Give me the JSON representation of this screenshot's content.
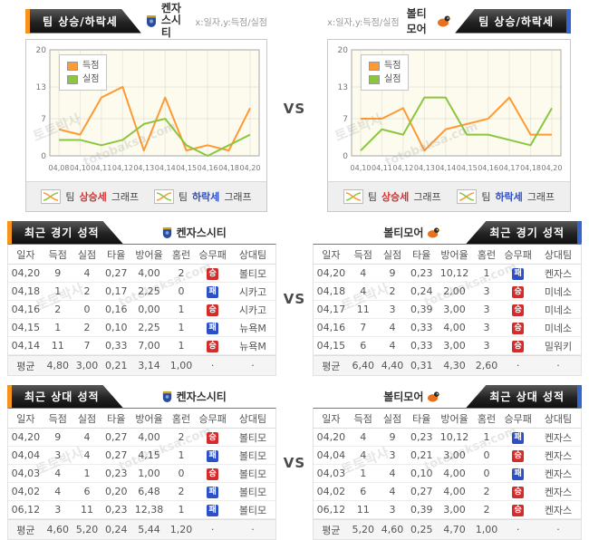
{
  "vs": "VS",
  "axis_note": "x:일자,y:득점/실점",
  "trend_tab_label": "팀 상승/하락세",
  "watermark": {
    "kr": "토토박사",
    "en": "totobaksa.com"
  },
  "legend": {
    "score": "득점",
    "concede": "실점"
  },
  "chart_footer": {
    "up": {
      "pre": "팀",
      "key": "상승세",
      "post": "그래프"
    },
    "down": {
      "pre": "팀",
      "key": "하락세",
      "post": "그래프"
    }
  },
  "teams": {
    "left": {
      "name": "켄자스시티"
    },
    "right": {
      "name": "볼티모어"
    }
  },
  "colors": {
    "score_line": "#FF9933",
    "concede_line": "#8CC63F",
    "accent_left": "#F7941D",
    "accent_right": "#3565CE",
    "win_badge": "#D42B2B",
    "loss_badge": "#2D4FC8"
  },
  "cell_names": [
    "date",
    "runs-scored",
    "runs-allowed",
    "batting-avg",
    "era",
    "home-runs",
    "result",
    "opponent"
  ],
  "chart_data": [
    {
      "type": "line",
      "team": "켄자스시티",
      "x": [
        "04,08",
        "04,10",
        "04,11",
        "04,12",
        "04,13",
        "04,14",
        "04,15",
        "04,16",
        "04,18",
        "04,20"
      ],
      "series": [
        {
          "name": "득점",
          "color": "#FF9933",
          "values": [
            5,
            4,
            11,
            13,
            1,
            11,
            1,
            2,
            1,
            9
          ]
        },
        {
          "name": "실점",
          "color": "#8CC63F",
          "values": [
            3,
            3,
            2,
            3,
            6,
            7,
            2,
            0,
            2,
            4
          ]
        }
      ],
      "ylim": [
        0,
        20
      ],
      "yticks": [
        0,
        7,
        13,
        20
      ],
      "legend_position": "top-left",
      "grid": true
    },
    {
      "type": "line",
      "team": "볼티모어",
      "x": [
        "04,10",
        "04,11",
        "04,12",
        "04,13",
        "04,14",
        "04,15",
        "04,16",
        "04,17",
        "04,18",
        "04,20"
      ],
      "series": [
        {
          "name": "득점",
          "color": "#FF9933",
          "values": [
            7,
            7,
            9,
            1,
            5,
            6,
            7,
            11,
            4,
            4
          ]
        },
        {
          "name": "실점",
          "color": "#8CC63F",
          "values": [
            1,
            5,
            4,
            11,
            11,
            4,
            4,
            3,
            2,
            9
          ]
        }
      ],
      "ylim": [
        0,
        20
      ],
      "yticks": [
        0,
        7,
        13,
        20
      ],
      "legend_position": "top-left",
      "grid": true
    }
  ],
  "recent_games": {
    "title": "최근 경기 성적",
    "columns": [
      "일자",
      "득점",
      "실점",
      "타율",
      "방어율",
      "홈런",
      "승무패",
      "상대팀"
    ],
    "left": {
      "rows": [
        [
          "04,20",
          "9",
          "4",
          "0,27",
          "4,00",
          "2",
          "승",
          "볼티모"
        ],
        [
          "04,18",
          "1",
          "2",
          "0,17",
          "2,25",
          "0",
          "패",
          "시카고"
        ],
        [
          "04,16",
          "2",
          "0",
          "0,16",
          "0,00",
          "1",
          "승",
          "시카고"
        ],
        [
          "04,15",
          "1",
          "2",
          "0,10",
          "2,25",
          "1",
          "패",
          "뉴욕M"
        ],
        [
          "04,14",
          "11",
          "7",
          "0,33",
          "7,00",
          "1",
          "승",
          "뉴욕M"
        ]
      ],
      "avg": [
        "평균",
        "4,80",
        "3,00",
        "0,21",
        "3,14",
        "1,00",
        "·",
        "·"
      ]
    },
    "right": {
      "rows": [
        [
          "04,20",
          "4",
          "9",
          "0,23",
          "10,12",
          "1",
          "패",
          "켄자스"
        ],
        [
          "04,18",
          "4",
          "2",
          "0,24",
          "2,00",
          "3",
          "승",
          "미네소"
        ],
        [
          "04,17",
          "11",
          "3",
          "0,39",
          "3,00",
          "3",
          "승",
          "미네소"
        ],
        [
          "04,16",
          "7",
          "4",
          "0,33",
          "4,00",
          "3",
          "승",
          "미네소"
        ],
        [
          "04,15",
          "6",
          "4",
          "0,33",
          "3,00",
          "3",
          "승",
          "밀워키"
        ]
      ],
      "avg": [
        "평균",
        "6,40",
        "4,40",
        "0,31",
        "4,30",
        "2,60",
        "·",
        "·"
      ]
    }
  },
  "recent_h2h": {
    "title": "최근 상대 성적",
    "columns": [
      "일자",
      "득점",
      "실점",
      "타율",
      "방어율",
      "홈런",
      "승무패",
      "상대팀"
    ],
    "left": {
      "rows": [
        [
          "04,20",
          "9",
          "4",
          "0,27",
          "4,00",
          "2",
          "승",
          "볼티모"
        ],
        [
          "04,04",
          "3",
          "4",
          "0,27",
          "4,15",
          "1",
          "패",
          "볼티모"
        ],
        [
          "04,03",
          "4",
          "1",
          "0,23",
          "1,00",
          "0",
          "승",
          "볼티모"
        ],
        [
          "04,02",
          "4",
          "6",
          "0,20",
          "6,48",
          "2",
          "패",
          "볼티모"
        ],
        [
          "06,12",
          "3",
          "11",
          "0,23",
          "12,38",
          "1",
          "패",
          "볼티모"
        ]
      ],
      "avg": [
        "평균",
        "4,60",
        "5,20",
        "0,24",
        "5,44",
        "1,20",
        "·",
        "·"
      ]
    },
    "right": {
      "rows": [
        [
          "04,20",
          "4",
          "9",
          "0,23",
          "10,12",
          "1",
          "패",
          "켄자스"
        ],
        [
          "04,04",
          "4",
          "3",
          "0,21",
          "3,00",
          "0",
          "승",
          "켄자스"
        ],
        [
          "04,03",
          "1",
          "4",
          "0,10",
          "4,00",
          "0",
          "패",
          "켄자스"
        ],
        [
          "04,02",
          "6",
          "4",
          "0,27",
          "4,00",
          "2",
          "승",
          "켄자스"
        ],
        [
          "06,12",
          "11",
          "3",
          "0,39",
          "3,00",
          "2",
          "승",
          "켄자스"
        ]
      ],
      "avg": [
        "평균",
        "5,20",
        "4,60",
        "0,25",
        "4,70",
        "1,00",
        "·",
        "·"
      ]
    }
  }
}
